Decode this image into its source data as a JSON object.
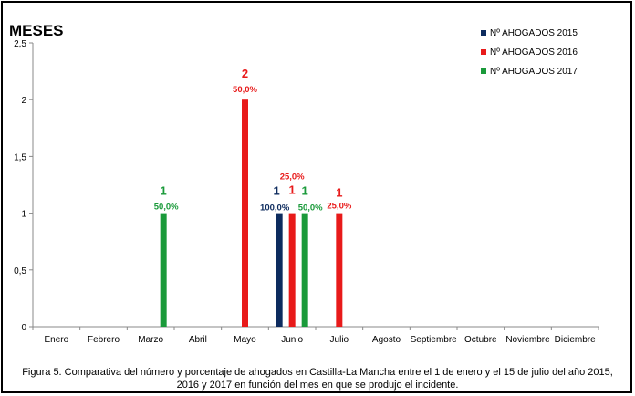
{
  "chart_data": {
    "type": "bar",
    "title": "MESES",
    "xlabel": "",
    "ylabel": "",
    "ylim": [
      0,
      2.5
    ],
    "yticks": [
      "0",
      "0,5",
      "1",
      "1,5",
      "2",
      "2,5"
    ],
    "grid": false,
    "legend_position": "top-right",
    "categories": [
      "Enero",
      "Febrero",
      "Marzo",
      "Abril",
      "Mayo",
      "Junio",
      "Julio",
      "Agosto",
      "Septiembre",
      "Octubre",
      "Noviembre",
      "Diciembre"
    ],
    "series": [
      {
        "name": "Nº AHOGADOS 2015",
        "color": "#0d2b5e",
        "values": [
          0,
          0,
          0,
          0,
          0,
          1,
          0,
          0,
          0,
          0,
          0,
          0
        ],
        "count_labels": [
          "",
          "",
          "",
          "",
          "",
          "1",
          "",
          "",
          "",
          "",
          "",
          ""
        ],
        "pct_labels": [
          "",
          "",
          "",
          "",
          "",
          "100,0%",
          "",
          "",
          "",
          "",
          "",
          ""
        ]
      },
      {
        "name": "Nº AHOGADOS 2016",
        "color": "#e81a1a",
        "values": [
          0,
          0,
          0,
          0,
          2,
          1,
          1,
          0,
          0,
          0,
          0,
          0
        ],
        "count_labels": [
          "",
          "",
          "",
          "",
          "2",
          "1",
          "1",
          "",
          "",
          "",
          "",
          ""
        ],
        "pct_labels": [
          "",
          "",
          "",
          "",
          "50,0%",
          "25,0%",
          "25,0%",
          "",
          "",
          "",
          "",
          ""
        ]
      },
      {
        "name": "Nº AHOGADOS 2017",
        "color": "#1a9a3a",
        "values": [
          0,
          0,
          1,
          0,
          0,
          1,
          0,
          0,
          0,
          0,
          0,
          0
        ],
        "count_labels": [
          "",
          "",
          "1",
          "",
          "",
          "1",
          "",
          "",
          "",
          "",
          "",
          ""
        ],
        "pct_labels": [
          "",
          "",
          "50,0%",
          "",
          "",
          "50,0%",
          "",
          "",
          "",
          "",
          "",
          ""
        ]
      }
    ]
  },
  "caption": {
    "line1": "Figura 5. Comparativa del número y porcentaje de ahogados en Castilla-La Mancha entre el 1 de enero y el 15 de julio del año 2015,",
    "line2": "2016 y 2017 en función del mes en que se produjo el incidente."
  }
}
